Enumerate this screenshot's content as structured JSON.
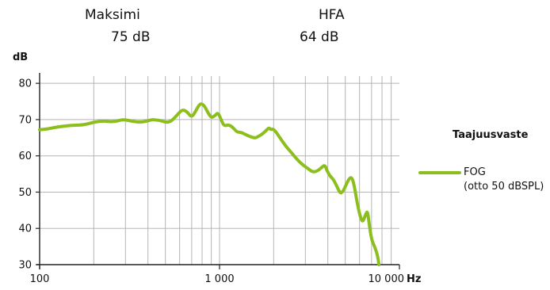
{
  "stats": [
    {
      "label": "Maksimi",
      "value": "75 dB"
    },
    {
      "label": "HFA",
      "value": "64 dB"
    }
  ],
  "chart_data": {
    "type": "line",
    "xscale": "log",
    "xlim": [
      100,
      10000
    ],
    "ylim": [
      30,
      82
    ],
    "ylabel": "dB",
    "xunit": "Hz",
    "yticks": [
      30,
      40,
      50,
      60,
      70,
      80
    ],
    "xticks": [
      {
        "value": 100,
        "label": "100"
      },
      {
        "value": 1000,
        "label": "1 000"
      },
      {
        "value": 10000,
        "label": "10 000"
      }
    ],
    "grid": true,
    "legend_title": "Taajuusvaste",
    "legend_position": "right",
    "series": [
      {
        "name": "FOG",
        "name_detail": "(otto 50 dBSPL)",
        "color": "#8cbf1e",
        "points": [
          [
            100,
            67.2
          ],
          [
            110,
            67.4
          ],
          [
            120,
            67.8
          ],
          [
            135,
            68.2
          ],
          [
            150,
            68.4
          ],
          [
            170,
            68.5
          ],
          [
            185,
            68.8
          ],
          [
            200,
            69.3
          ],
          [
            215,
            69.5
          ],
          [
            230,
            69.6
          ],
          [
            250,
            69.4
          ],
          [
            270,
            69.6
          ],
          [
            290,
            70.0
          ],
          [
            310,
            69.8
          ],
          [
            330,
            69.5
          ],
          [
            360,
            69.3
          ],
          [
            390,
            69.5
          ],
          [
            420,
            70.0
          ],
          [
            450,
            69.9
          ],
          [
            480,
            69.6
          ],
          [
            510,
            69.2
          ],
          [
            540,
            69.6
          ],
          [
            580,
            71.2
          ],
          [
            620,
            72.8
          ],
          [
            660,
            72.2
          ],
          [
            700,
            70.5
          ],
          [
            740,
            72.5
          ],
          [
            780,
            74.5
          ],
          [
            820,
            74.0
          ],
          [
            860,
            72.0
          ],
          [
            900,
            70.5
          ],
          [
            940,
            71.0
          ],
          [
            980,
            72.0
          ],
          [
            1020,
            70.0
          ],
          [
            1060,
            68.2
          ],
          [
            1120,
            68.6
          ],
          [
            1180,
            68.0
          ],
          [
            1250,
            66.5
          ],
          [
            1320,
            66.5
          ],
          [
            1400,
            65.8
          ],
          [
            1500,
            65.2
          ],
          [
            1580,
            64.9
          ],
          [
            1650,
            65.4
          ],
          [
            1730,
            66.0
          ],
          [
            1820,
            67.0
          ],
          [
            1880,
            67.8
          ],
          [
            1930,
            67.2
          ],
          [
            1990,
            67.5
          ],
          [
            2100,
            66.0
          ],
          [
            2200,
            64.5
          ],
          [
            2350,
            62.5
          ],
          [
            2500,
            61.0
          ],
          [
            2700,
            59.0
          ],
          [
            2900,
            57.5
          ],
          [
            3100,
            56.5
          ],
          [
            3300,
            55.5
          ],
          [
            3500,
            55.8
          ],
          [
            3700,
            56.8
          ],
          [
            3850,
            57.5
          ],
          [
            3950,
            56.0
          ],
          [
            4100,
            54.5
          ],
          [
            4300,
            53.5
          ],
          [
            4500,
            51.5
          ],
          [
            4700,
            49.5
          ],
          [
            4900,
            50.5
          ],
          [
            5100,
            52.5
          ],
          [
            5300,
            54.0
          ],
          [
            5450,
            54.0
          ],
          [
            5600,
            52.0
          ],
          [
            5800,
            47.5
          ],
          [
            6000,
            44.0
          ],
          [
            6200,
            41.8
          ],
          [
            6350,
            42.5
          ],
          [
            6500,
            44.0
          ],
          [
            6650,
            44.8
          ],
          [
            6800,
            41.0
          ],
          [
            7000,
            37.0
          ],
          [
            7200,
            35.5
          ],
          [
            7400,
            34.0
          ],
          [
            7550,
            32.5
          ],
          [
            7700,
            30.0
          ]
        ]
      }
    ]
  }
}
